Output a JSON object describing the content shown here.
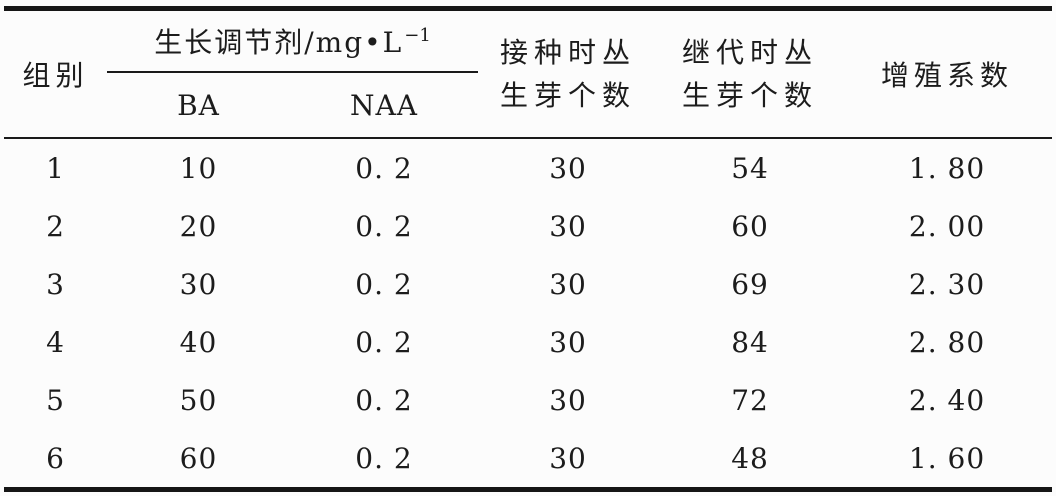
{
  "colors": {
    "background": "#fcfcfc",
    "rule_line": "#1a1a1a",
    "text": "#1c1c1c"
  },
  "table": {
    "headers": {
      "group": "组别",
      "regulator_base": "生长调节剂/mg•L",
      "regulator_sup": "−1",
      "ba": "BA",
      "naa": "NAA",
      "inoculation_line1": "接种时丛",
      "inoculation_line2": "生芽个数",
      "subculture_line1": "继代时丛",
      "subculture_line2": "生芽个数",
      "coefficient": "增殖系数"
    },
    "column_keys": [
      "group",
      "ba",
      "naa",
      "shoots-at-inoculation",
      "shoots-at-subculture",
      "multiplication-coefficient"
    ],
    "rows": [
      [
        "1",
        "10",
        "0. 2",
        "30",
        "54",
        "1. 80"
      ],
      [
        "2",
        "20",
        "0. 2",
        "30",
        "60",
        "2. 00"
      ],
      [
        "3",
        "30",
        "0. 2",
        "30",
        "69",
        "2. 30"
      ],
      [
        "4",
        "40",
        "0. 2",
        "30",
        "84",
        "2. 80"
      ],
      [
        "5",
        "50",
        "0. 2",
        "30",
        "72",
        "2. 40"
      ],
      [
        "6",
        "60",
        "0. 2",
        "30",
        "48",
        "1. 60"
      ]
    ]
  }
}
